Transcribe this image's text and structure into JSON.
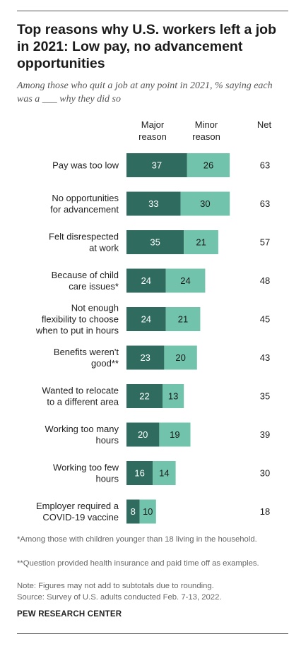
{
  "title": "Top reasons why U.S. workers left a job in 2021: Low pay, no advancement opportunities",
  "subtitle": "Among those who quit a job at any point in 2021, % saying each was a ___ why they did so",
  "columns": {
    "major": "Major reason",
    "minor": "Minor reason",
    "net": "Net"
  },
  "colors": {
    "major": "#2f6b5e",
    "minor": "#72c3ab",
    "major_text": "#ffffff",
    "minor_text": "#1a1a1a"
  },
  "chart_data": {
    "type": "bar",
    "orientation": "horizontal",
    "stacked": true,
    "categories": [
      [
        "Pay was too low"
      ],
      [
        "No opportunities",
        "for advancement"
      ],
      [
        "Felt disrespected",
        "at work"
      ],
      [
        "Because of child",
        "care issues*"
      ],
      [
        "Not enough",
        "flexibility to choose",
        "when to put in hours"
      ],
      [
        "Benefits weren't",
        "good**"
      ],
      [
        "Wanted to relocate",
        "to a different area"
      ],
      [
        "Working too many",
        "hours"
      ],
      [
        "Working too few",
        "hours"
      ],
      [
        "Employer required a",
        "COVID-19 vaccine"
      ]
    ],
    "series": [
      {
        "name": "Major reason",
        "values": [
          37,
          33,
          35,
          24,
          24,
          23,
          22,
          20,
          16,
          8
        ]
      },
      {
        "name": "Minor reason",
        "values": [
          26,
          30,
          21,
          24,
          21,
          20,
          13,
          19,
          14,
          10
        ]
      }
    ],
    "net": [
      63,
      63,
      57,
      48,
      45,
      43,
      35,
      39,
      30,
      18
    ]
  },
  "notes": [
    "*Among those with children younger than 18 living in the household.",
    "**Question provided health insurance and paid time off as examples.",
    "Note: Figures may not add to subtotals due to rounding.",
    "Source: Survey of U.S. adults conducted Feb. 7-13, 2022."
  ],
  "brand": "PEW RESEARCH CENTER"
}
